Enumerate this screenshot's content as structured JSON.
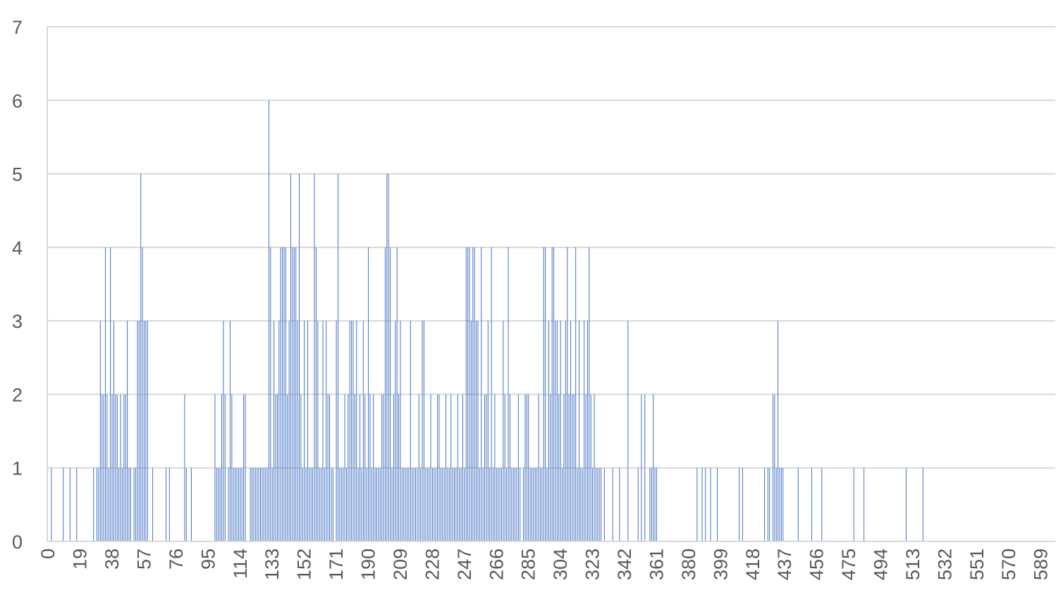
{
  "chart_data": {
    "type": "bar",
    "title": "",
    "xlabel": "",
    "ylabel": "",
    "ylim": [
      0,
      7
    ],
    "y_ticks": [
      0,
      1,
      2,
      3,
      4,
      5,
      6,
      7
    ],
    "x_tick_labels": [
      "0",
      "19",
      "38",
      "57",
      "76",
      "95",
      "114",
      "133",
      "152",
      "171",
      "190",
      "209",
      "228",
      "247",
      "266",
      "285",
      "304",
      "323",
      "342",
      "361",
      "380",
      "399",
      "418",
      "437",
      "456",
      "475",
      "494",
      "513",
      "532",
      "551",
      "570",
      "589"
    ],
    "x_range": [
      0,
      598
    ],
    "grid": "horizontal",
    "legend": "none",
    "bar_color": "#4472c4",
    "bars": [
      [
        2,
        1
      ],
      [
        9,
        1
      ],
      [
        13,
        1
      ],
      [
        17,
        1
      ],
      [
        27,
        1
      ],
      [
        29,
        1
      ],
      [
        30,
        1
      ],
      [
        31,
        3
      ],
      [
        32,
        2
      ],
      [
        33,
        2
      ],
      [
        34,
        4
      ],
      [
        35,
        2
      ],
      [
        36,
        1
      ],
      [
        37,
        4
      ],
      [
        38,
        2
      ],
      [
        39,
        3
      ],
      [
        40,
        2
      ],
      [
        41,
        2
      ],
      [
        42,
        1
      ],
      [
        43,
        2
      ],
      [
        44,
        1
      ],
      [
        45,
        2
      ],
      [
        46,
        2
      ],
      [
        47,
        3
      ],
      [
        48,
        1
      ],
      [
        49,
        1
      ],
      [
        51,
        1
      ],
      [
        52,
        1
      ],
      [
        53,
        3
      ],
      [
        54,
        3
      ],
      [
        55,
        5
      ],
      [
        56,
        4
      ],
      [
        57,
        3
      ],
      [
        58,
        3
      ],
      [
        59,
        3
      ],
      [
        62,
        1
      ],
      [
        70,
        1
      ],
      [
        72,
        1
      ],
      [
        81,
        2
      ],
      [
        82,
        1
      ],
      [
        85,
        1
      ],
      [
        99,
        2
      ],
      [
        100,
        1
      ],
      [
        101,
        1
      ],
      [
        102,
        1
      ],
      [
        103,
        2
      ],
      [
        104,
        3
      ],
      [
        105,
        2
      ],
      [
        107,
        1
      ],
      [
        108,
        3
      ],
      [
        109,
        2
      ],
      [
        110,
        1
      ],
      [
        111,
        1
      ],
      [
        112,
        1
      ],
      [
        113,
        1
      ],
      [
        114,
        1
      ],
      [
        115,
        1
      ],
      [
        116,
        2
      ],
      [
        117,
        2
      ],
      [
        120,
        1
      ],
      [
        121,
        1
      ],
      [
        122,
        1
      ],
      [
        123,
        1
      ],
      [
        124,
        1
      ],
      [
        125,
        1
      ],
      [
        126,
        1
      ],
      [
        127,
        1
      ],
      [
        128,
        1
      ],
      [
        129,
        1
      ],
      [
        130,
        1
      ],
      [
        131,
        6
      ],
      [
        132,
        4
      ],
      [
        133,
        1
      ],
      [
        134,
        3
      ],
      [
        135,
        2
      ],
      [
        136,
        2
      ],
      [
        137,
        3
      ],
      [
        138,
        4
      ],
      [
        139,
        4
      ],
      [
        140,
        4
      ],
      [
        141,
        4
      ],
      [
        142,
        2
      ],
      [
        143,
        3
      ],
      [
        144,
        5
      ],
      [
        145,
        4
      ],
      [
        146,
        4
      ],
      [
        147,
        4
      ],
      [
        148,
        3
      ],
      [
        149,
        5
      ],
      [
        150,
        2
      ],
      [
        151,
        1
      ],
      [
        152,
        3
      ],
      [
        153,
        1
      ],
      [
        154,
        3
      ],
      [
        155,
        1
      ],
      [
        156,
        1
      ],
      [
        157,
        1
      ],
      [
        158,
        5
      ],
      [
        159,
        4
      ],
      [
        160,
        3
      ],
      [
        161,
        1
      ],
      [
        162,
        1
      ],
      [
        163,
        3
      ],
      [
        164,
        1
      ],
      [
        165,
        3
      ],
      [
        166,
        2
      ],
      [
        167,
        2
      ],
      [
        168,
        1
      ],
      [
        169,
        1
      ],
      [
        171,
        3
      ],
      [
        172,
        5
      ],
      [
        173,
        1
      ],
      [
        174,
        1
      ],
      [
        175,
        1
      ],
      [
        176,
        2
      ],
      [
        177,
        1
      ],
      [
        178,
        2
      ],
      [
        179,
        3
      ],
      [
        180,
        3
      ],
      [
        181,
        3
      ],
      [
        182,
        2
      ],
      [
        183,
        3
      ],
      [
        184,
        1
      ],
      [
        185,
        2
      ],
      [
        186,
        1
      ],
      [
        187,
        3
      ],
      [
        188,
        2
      ],
      [
        189,
        1
      ],
      [
        190,
        4
      ],
      [
        191,
        2
      ],
      [
        192,
        1
      ],
      [
        193,
        2
      ],
      [
        194,
        1
      ],
      [
        195,
        1
      ],
      [
        196,
        1
      ],
      [
        197,
        1
      ],
      [
        198,
        2
      ],
      [
        199,
        2
      ],
      [
        200,
        4
      ],
      [
        201,
        5
      ],
      [
        202,
        5
      ],
      [
        203,
        4
      ],
      [
        204,
        1
      ],
      [
        205,
        2
      ],
      [
        206,
        3
      ],
      [
        207,
        4
      ],
      [
        208,
        2
      ],
      [
        209,
        3
      ],
      [
        210,
        1
      ],
      [
        211,
        1
      ],
      [
        212,
        1
      ],
      [
        213,
        1
      ],
      [
        214,
        1
      ],
      [
        215,
        3
      ],
      [
        216,
        1
      ],
      [
        217,
        1
      ],
      [
        218,
        1
      ],
      [
        219,
        1
      ],
      [
        220,
        2
      ],
      [
        221,
        1
      ],
      [
        222,
        3
      ],
      [
        223,
        3
      ],
      [
        224,
        1
      ],
      [
        225,
        1
      ],
      [
        226,
        1
      ],
      [
        227,
        2
      ],
      [
        228,
        1
      ],
      [
        229,
        1
      ],
      [
        230,
        1
      ],
      [
        231,
        2
      ],
      [
        232,
        2
      ],
      [
        233,
        1
      ],
      [
        234,
        1
      ],
      [
        235,
        1
      ],
      [
        236,
        2
      ],
      [
        237,
        1
      ],
      [
        238,
        1
      ],
      [
        239,
        2
      ],
      [
        240,
        1
      ],
      [
        241,
        1
      ],
      [
        242,
        1
      ],
      [
        243,
        2
      ],
      [
        244,
        1
      ],
      [
        245,
        1
      ],
      [
        246,
        2
      ],
      [
        247,
        1
      ],
      [
        248,
        4
      ],
      [
        249,
        4
      ],
      [
        250,
        4
      ],
      [
        251,
        3
      ],
      [
        252,
        4
      ],
      [
        253,
        4
      ],
      [
        254,
        3
      ],
      [
        255,
        3
      ],
      [
        256,
        1
      ],
      [
        257,
        4
      ],
      [
        258,
        1
      ],
      [
        259,
        2
      ],
      [
        260,
        2
      ],
      [
        261,
        3
      ],
      [
        262,
        1
      ],
      [
        263,
        4
      ],
      [
        264,
        1
      ],
      [
        265,
        2
      ],
      [
        266,
        1
      ],
      [
        267,
        1
      ],
      [
        268,
        1
      ],
      [
        269,
        1
      ],
      [
        270,
        3
      ],
      [
        271,
        2
      ],
      [
        272,
        1
      ],
      [
        273,
        4
      ],
      [
        274,
        2
      ],
      [
        275,
        1
      ],
      [
        276,
        1
      ],
      [
        277,
        1
      ],
      [
        278,
        1
      ],
      [
        279,
        2
      ],
      [
        280,
        1
      ],
      [
        282,
        1
      ],
      [
        283,
        2
      ],
      [
        284,
        2
      ],
      [
        285,
        2
      ],
      [
        286,
        1
      ],
      [
        287,
        1
      ],
      [
        288,
        1
      ],
      [
        289,
        1
      ],
      [
        290,
        1
      ],
      [
        291,
        2
      ],
      [
        292,
        1
      ],
      [
        293,
        1
      ],
      [
        294,
        4
      ],
      [
        295,
        4
      ],
      [
        296,
        1
      ],
      [
        297,
        3
      ],
      [
        298,
        2
      ],
      [
        299,
        4
      ],
      [
        300,
        4
      ],
      [
        301,
        3
      ],
      [
        302,
        3
      ],
      [
        303,
        2
      ],
      [
        304,
        3
      ],
      [
        305,
        1
      ],
      [
        306,
        2
      ],
      [
        307,
        3
      ],
      [
        308,
        4
      ],
      [
        309,
        2
      ],
      [
        310,
        3
      ],
      [
        311,
        2
      ],
      [
        312,
        2
      ],
      [
        313,
        4
      ],
      [
        314,
        1
      ],
      [
        315,
        3
      ],
      [
        316,
        1
      ],
      [
        317,
        1
      ],
      [
        318,
        3
      ],
      [
        319,
        2
      ],
      [
        320,
        3
      ],
      [
        321,
        4
      ],
      [
        322,
        2
      ],
      [
        323,
        1
      ],
      [
        324,
        2
      ],
      [
        325,
        1
      ],
      [
        326,
        1
      ],
      [
        327,
        1
      ],
      [
        328,
        1
      ],
      [
        330,
        1
      ],
      [
        335,
        1
      ],
      [
        339,
        1
      ],
      [
        344,
        3
      ],
      [
        350,
        1
      ],
      [
        352,
        2
      ],
      [
        354,
        2
      ],
      [
        357,
        1
      ],
      [
        358,
        1
      ],
      [
        359,
        2
      ],
      [
        360,
        1
      ],
      [
        361,
        1
      ],
      [
        385,
        1
      ],
      [
        388,
        1
      ],
      [
        390,
        1
      ],
      [
        393,
        1
      ],
      [
        397,
        1
      ],
      [
        410,
        1
      ],
      [
        412,
        1
      ],
      [
        425,
        1
      ],
      [
        427,
        1
      ],
      [
        428,
        1
      ],
      [
        430,
        2
      ],
      [
        431,
        2
      ],
      [
        432,
        1
      ],
      [
        433,
        3
      ],
      [
        434,
        1
      ],
      [
        435,
        1
      ],
      [
        436,
        1
      ],
      [
        445,
        1
      ],
      [
        453,
        1
      ],
      [
        459,
        1
      ],
      [
        478,
        1
      ],
      [
        484,
        1
      ],
      [
        509,
        1
      ],
      [
        519,
        1
      ]
    ]
  }
}
